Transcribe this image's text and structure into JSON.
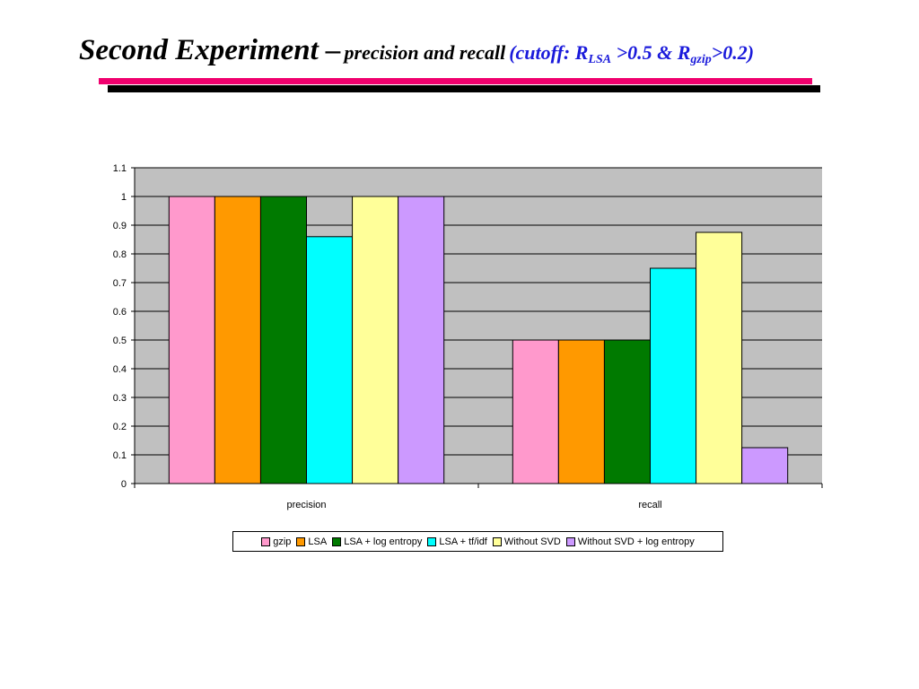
{
  "slide": {
    "title_main": "Second Experiment –",
    "title_sub": "precision and recall",
    "cutoff_prefix": "(cutoff: R",
    "cutoff_sub1": "LSA",
    "cutoff_mid": " >0.5 & R",
    "cutoff_sub2": "gzip",
    "cutoff_suffix": ">0.2)"
  },
  "chart_data": {
    "type": "bar",
    "categories": [
      "precision",
      "recall"
    ],
    "series": [
      {
        "name": "gzip",
        "color": "#ff99cc",
        "values": [
          1.0,
          0.5
        ]
      },
      {
        "name": "LSA",
        "color": "#ff9900",
        "values": [
          1.0,
          0.5
        ]
      },
      {
        "name": "LSA + log entropy",
        "color": "#007a00",
        "values": [
          1.0,
          0.5
        ]
      },
      {
        "name": "LSA + tf/idf",
        "color": "#00ffff",
        "values": [
          0.86,
          0.75
        ]
      },
      {
        "name": "Without SVD",
        "color": "#ffff99",
        "values": [
          1.0,
          0.875
        ]
      },
      {
        "name": "Without SVD  + log entropy",
        "color": "#cc99ff",
        "values": [
          1.0,
          0.125
        ]
      }
    ],
    "ylim": [
      0,
      1.1
    ],
    "yticks": [
      "0",
      "0.1",
      "0.2",
      "0.3",
      "0.4",
      "0.5",
      "0.6",
      "0.7",
      "0.8",
      "0.9",
      "1",
      "1.1"
    ],
    "grid": true,
    "plot_background": "#c0c0c0",
    "legend_position": "bottom"
  }
}
